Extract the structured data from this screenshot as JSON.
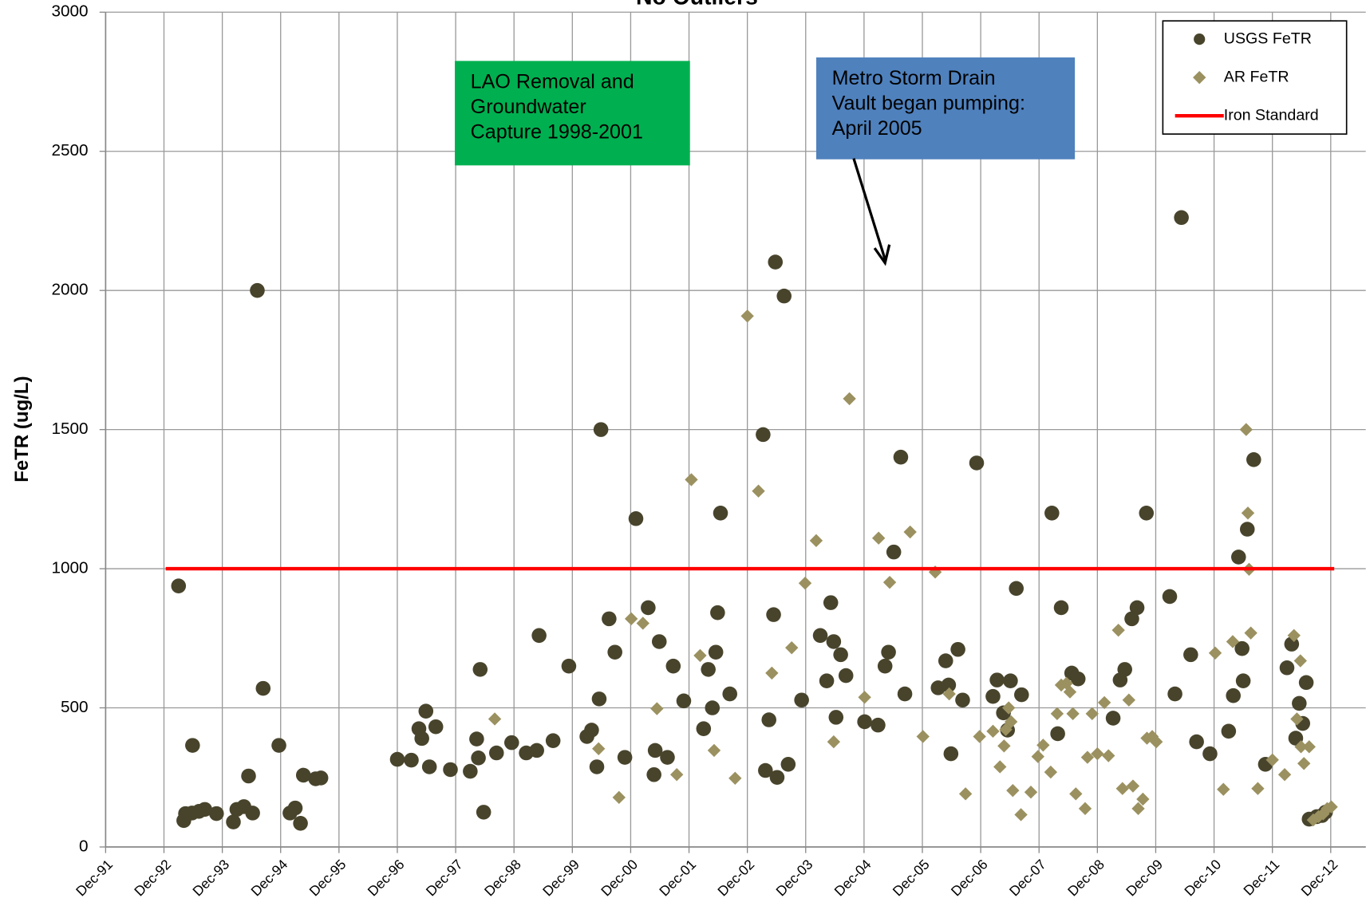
{
  "chart_data": {
    "type": "scatter",
    "title": "No Outliers",
    "y_label": "FeTR (ug/L)",
    "xlim": [
      1991.92,
      2013.52
    ],
    "ylim": [
      0,
      3000
    ],
    "yticks": [
      0,
      500,
      1000,
      1500,
      2000,
      2500,
      3000
    ],
    "xticks": [
      {
        "value": 1991.92,
        "label": "Dec-91"
      },
      {
        "value": 1992.92,
        "label": "Dec-92"
      },
      {
        "value": 1993.92,
        "label": "Dec-93"
      },
      {
        "value": 1994.92,
        "label": "Dec-94"
      },
      {
        "value": 1995.92,
        "label": "Dec-95"
      },
      {
        "value": 1996.92,
        "label": "Dec-96"
      },
      {
        "value": 1997.92,
        "label": "Dec-97"
      },
      {
        "value": 1998.92,
        "label": "Dec-98"
      },
      {
        "value": 1999.92,
        "label": "Dec-99"
      },
      {
        "value": 2000.92,
        "label": "Dec-00"
      },
      {
        "value": 2001.92,
        "label": "Dec-01"
      },
      {
        "value": 2002.92,
        "label": "Dec-02"
      },
      {
        "value": 2003.92,
        "label": "Dec-03"
      },
      {
        "value": 2004.92,
        "label": "Dec-04"
      },
      {
        "value": 2005.92,
        "label": "Dec-05"
      },
      {
        "value": 2006.92,
        "label": "Dec-06"
      },
      {
        "value": 2007.92,
        "label": "Dec-07"
      },
      {
        "value": 2008.92,
        "label": "Dec-08"
      },
      {
        "value": 2009.92,
        "label": "Dec-09"
      },
      {
        "value": 2010.92,
        "label": "Dec-10"
      },
      {
        "value": 2011.92,
        "label": "Dec-11"
      },
      {
        "value": 2012.92,
        "label": "Dec-12"
      }
    ],
    "grid": true,
    "legend": "upper right",
    "annotations": [
      {
        "lines": [
          "LAO Removal and",
          "Groundwater",
          "Capture 1998-2001"
        ],
        "color": "#00b050"
      },
      {
        "lines": [
          "Metro Storm Drain",
          "Vault began pumping:",
          "April 2005"
        ],
        "color": "#4f81bd"
      }
    ],
    "series": [
      {
        "name": "USGS FeTR",
        "marker": "circle",
        "color": "#48442c",
        "x": [
          1993.17,
          1993.26,
          1993.29,
          1993.4,
          1993.41,
          1993.52,
          1993.62,
          1993.82,
          1994.11,
          1994.17,
          1994.29,
          1994.37,
          1994.44,
          1994.52,
          1994.62,
          1994.89,
          1995.08,
          1995.17,
          1995.26,
          1995.31,
          1995.52,
          1995.61,
          1996.92,
          1997.16,
          1997.29,
          1997.34,
          1997.41,
          1997.47,
          1997.58,
          1997.83,
          1998.17,
          1998.28,
          1998.31,
          1998.34,
          1998.4,
          1998.62,
          1998.88,
          1999.13,
          1999.31,
          1999.35,
          1999.59,
          1999.86,
          2000.17,
          2000.25,
          2000.34,
          2000.38,
          2000.41,
          2000.55,
          2000.65,
          2000.82,
          2001.01,
          2001.22,
          2001.32,
          2001.34,
          2001.41,
          2001.55,
          2001.65,
          2001.83,
          2002.17,
          2002.25,
          2002.32,
          2002.38,
          2002.41,
          2002.46,
          2002.62,
          2003.19,
          2003.23,
          2003.29,
          2003.37,
          2003.4,
          2003.43,
          2003.55,
          2003.62,
          2003.85,
          2004.17,
          2004.28,
          2004.35,
          2004.4,
          2004.44,
          2004.52,
          2004.61,
          2004.93,
          2005.16,
          2005.28,
          2005.34,
          2005.43,
          2005.55,
          2005.62,
          2006.19,
          2006.32,
          2006.37,
          2006.41,
          2006.53,
          2006.61,
          2006.85,
          2007.13,
          2007.2,
          2007.31,
          2007.38,
          2007.43,
          2007.53,
          2007.62,
          2008.14,
          2008.24,
          2008.3,
          2008.48,
          2008.59,
          2009.19,
          2009.31,
          2009.39,
          2009.51,
          2009.6,
          2009.76,
          2010.16,
          2010.25,
          2010.36,
          2010.52,
          2010.62,
          2010.85,
          2011.17,
          2011.25,
          2011.34,
          2011.4,
          2011.42,
          2011.49,
          2011.6,
          2011.8,
          2012.17,
          2012.25,
          2012.32,
          2012.38,
          2012.44,
          2012.5,
          2012.55,
          2012.68,
          2012.77,
          2012.83
        ],
        "values": [
          938,
          95,
          120,
          122,
          365,
          128,
          135,
          120,
          90,
          135,
          145,
          255,
          122,
          2000,
          570,
          365,
          122,
          140,
          85,
          258,
          245,
          248,
          315,
          312,
          425,
          390,
          488,
          288,
          432,
          278,
          272,
          388,
          320,
          638,
          125,
          338,
          375,
          338,
          347,
          760,
          382,
          650,
          397,
          420,
          288,
          532,
          1500,
          820,
          700,
          322,
          1180,
          860,
          260,
          347,
          738,
          322,
          650,
          525,
          425,
          638,
          500,
          700,
          842,
          1200,
          550,
          1482,
          275,
          457,
          835,
          2102,
          250,
          1980,
          297,
          528,
          760,
          597,
          878,
          738,
          466,
          691,
          616,
          450,
          438,
          650,
          700,
          1060,
          1401,
          550,
          572,
          669,
          582,
          335,
          710,
          528,
          1380,
          541,
          600,
          482,
          420,
          597,
          929,
          547,
          1200,
          407,
          860,
          625,
          604,
          463,
          600,
          638,
          820,
          860,
          1200,
          900,
          550,
          2262,
          691,
          378,
          335,
          416,
          544,
          1042,
          713,
          597,
          1142,
          1392,
          297,
          644,
          729,
          391,
          516,
          444,
          591,
          100,
          109,
          113,
          125
        ]
      },
      {
        "name": "AR FeTR",
        "marker": "diamond",
        "color": "#9b9160",
        "x": [
          1998.59,
          2000.37,
          2000.72,
          2000.93,
          2001.13,
          2001.37,
          2001.71,
          2001.96,
          2002.11,
          2002.35,
          2002.71,
          2002.92,
          2003.11,
          2003.34,
          2003.68,
          2003.91,
          2004.1,
          2004.4,
          2004.67,
          2004.93,
          2005.17,
          2005.36,
          2005.71,
          2005.93,
          2006.14,
          2006.38,
          2006.66,
          2006.9,
          2007.13,
          2007.25,
          2007.32,
          2007.35,
          2007.4,
          2007.44,
          2007.47,
          2007.61,
          2007.78,
          2007.9,
          2007.99,
          2008.12,
          2008.23,
          2008.3,
          2008.39,
          2008.45,
          2008.5,
          2008.55,
          2008.71,
          2008.75,
          2008.83,
          2008.92,
          2009.04,
          2009.11,
          2009.28,
          2009.35,
          2009.46,
          2009.53,
          2009.62,
          2009.7,
          2009.77,
          2009.86,
          2009.93,
          2010.94,
          2011.08,
          2011.24,
          2011.47,
          2011.5,
          2011.52,
          2011.55,
          2011.67,
          2011.92,
          2012.13,
          2012.29,
          2012.34,
          2012.4,
          2012.41,
          2012.46,
          2012.55,
          2012.62,
          2012.71,
          2012.79,
          2012.86,
          2012.93
        ],
        "values": [
          460,
          353,
          178,
          820,
          804,
          497,
          260,
          1320,
          688,
          347,
          247,
          1908,
          1279,
          625,
          716,
          948,
          1101,
          378,
          1611,
          538,
          1110,
          951,
          1132,
          397,
          988,
          550,
          191,
          397,
          416,
          288,
          363,
          422,
          500,
          450,
          203,
          116,
          197,
          325,
          366,
          269,
          479,
          582,
          588,
          557,
          479,
          191,
          138,
          322,
          479,
          335,
          519,
          328,
          779,
          210,
          528,
          219,
          138,
          172,
          391,
          397,
          378,
          697,
          207,
          738,
          1500,
          1200,
          998,
          769,
          210,
          313,
          260,
          760,
          460,
          669,
          360,
          300,
          360,
          97,
          109,
          119,
          138,
          144
        ]
      },
      {
        "name": "Iron Standard",
        "marker": "line",
        "color": "#ff0000",
        "x": [
          1992.95,
          2012.98
        ],
        "values": [
          1000,
          1000
        ]
      }
    ]
  }
}
